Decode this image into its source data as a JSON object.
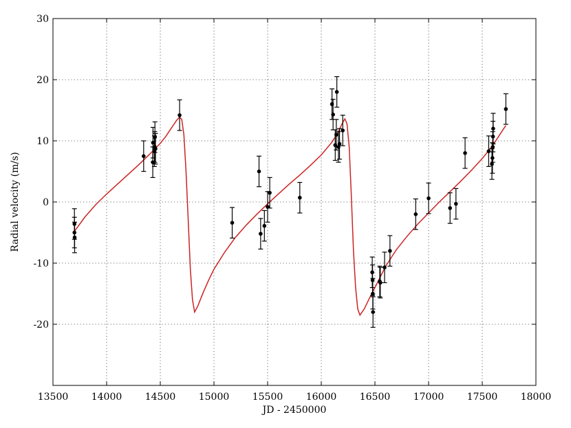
{
  "chart_data": {
    "type": "scatter",
    "title": "",
    "xlabel": "JD - 2450000",
    "ylabel": "Radial velocity (m/s)",
    "xlim": [
      13500,
      18000
    ],
    "ylim": [
      -30,
      30
    ],
    "xticks": [
      13500,
      14000,
      14500,
      15000,
      15500,
      16000,
      16500,
      17000,
      17500,
      18000
    ],
    "yticks": [
      -20,
      -10,
      0,
      10,
      20,
      30
    ],
    "grid": true,
    "colors": {
      "model": "#cc2222",
      "points": "#000000"
    },
    "series": [
      {
        "kind": "errorbar",
        "points": [
          {
            "x": 13700,
            "y": -3.6,
            "err": 2.5
          },
          {
            "x": 13700,
            "y": -5.0,
            "err": 2.5
          },
          {
            "x": 13702,
            "y": -5.8,
            "err": 2.5
          },
          {
            "x": 14345,
            "y": 7.5,
            "err": 2.5
          },
          {
            "x": 14430,
            "y": 6.5,
            "err": 2.5
          },
          {
            "x": 14432,
            "y": 9.7,
            "err": 2.5
          },
          {
            "x": 14445,
            "y": 8.3,
            "err": 2.5
          },
          {
            "x": 14448,
            "y": 9.0,
            "err": 2.5
          },
          {
            "x": 14450,
            "y": 10.6,
            "err": 2.5
          },
          {
            "x": 14455,
            "y": 8.7,
            "err": 2.5
          },
          {
            "x": 14680,
            "y": 14.2,
            "err": 2.5
          },
          {
            "x": 15170,
            "y": -3.4,
            "err": 2.5
          },
          {
            "x": 15420,
            "y": 5.0,
            "err": 2.5
          },
          {
            "x": 15435,
            "y": -5.2,
            "err": 2.5
          },
          {
            "x": 15470,
            "y": -3.9,
            "err": 2.5
          },
          {
            "x": 15500,
            "y": -0.8,
            "err": 2.5
          },
          {
            "x": 15520,
            "y": 1.5,
            "err": 2.5
          },
          {
            "x": 15800,
            "y": 0.7,
            "err": 2.5
          },
          {
            "x": 16100,
            "y": 16.0,
            "err": 2.5
          },
          {
            "x": 16110,
            "y": 14.3,
            "err": 2.5
          },
          {
            "x": 16130,
            "y": 9.3,
            "err": 2.5
          },
          {
            "x": 16140,
            "y": 11.0,
            "err": 2.5
          },
          {
            "x": 16145,
            "y": 18.0,
            "err": 2.5
          },
          {
            "x": 16160,
            "y": 9.0,
            "err": 2.5
          },
          {
            "x": 16170,
            "y": 9.5,
            "err": 2.5
          },
          {
            "x": 16200,
            "y": 11.7,
            "err": 2.5
          },
          {
            "x": 16475,
            "y": -11.5,
            "err": 2.5
          },
          {
            "x": 16478,
            "y": -12.8,
            "err": 2.5
          },
          {
            "x": 16480,
            "y": -15.0,
            "err": 2.5
          },
          {
            "x": 16482,
            "y": -18.0,
            "err": 2.5
          },
          {
            "x": 16545,
            "y": -13.0,
            "err": 2.5
          },
          {
            "x": 16550,
            "y": -13.2,
            "err": 2.5
          },
          {
            "x": 16590,
            "y": -10.7,
            "err": 2.5
          },
          {
            "x": 16640,
            "y": -8.0,
            "err": 2.5
          },
          {
            "x": 16880,
            "y": -2.0,
            "err": 2.5
          },
          {
            "x": 17000,
            "y": 0.6,
            "err": 2.5
          },
          {
            "x": 17200,
            "y": -1.0,
            "err": 2.5
          },
          {
            "x": 17255,
            "y": -0.3,
            "err": 2.5
          },
          {
            "x": 17340,
            "y": 8.0,
            "err": 2.5
          },
          {
            "x": 17560,
            "y": 8.3,
            "err": 2.5
          },
          {
            "x": 17590,
            "y": 6.2,
            "err": 2.5
          },
          {
            "x": 17595,
            "y": 7.2,
            "err": 2.5
          },
          {
            "x": 17598,
            "y": 9.0,
            "err": 2.5
          },
          {
            "x": 17600,
            "y": 10.7,
            "err": 2.5
          },
          {
            "x": 17602,
            "y": 12.0,
            "err": 2.5
          },
          {
            "x": 17720,
            "y": 15.2,
            "err": 2.5
          }
        ]
      },
      {
        "kind": "line",
        "x": [
          13700,
          13800,
          13900,
          14000,
          14100,
          14200,
          14300,
          14400,
          14500,
          14550,
          14600,
          14650,
          14680,
          14700,
          14720,
          14740,
          14760,
          14780,
          14800,
          14820,
          14850,
          14900,
          14950,
          15000,
          15100,
          15200,
          15300,
          15400,
          15500,
          15600,
          15700,
          15800,
          15900,
          16000,
          16100,
          16150,
          16200,
          16220,
          16240,
          16260,
          16280,
          16300,
          16320,
          16340,
          16360,
          16400,
          16450,
          16500,
          16600,
          16700,
          16800,
          16900,
          17000,
          17100,
          17200,
          17300,
          17400,
          17500,
          17600,
          17700,
          17720
        ],
        "y": [
          -4.8,
          -2.4,
          -0.4,
          1.3,
          2.9,
          4.5,
          6.1,
          7.8,
          9.6,
          10.7,
          12.0,
          13.3,
          13.9,
          13.5,
          11.0,
          5.0,
          -3.0,
          -11.0,
          -16.0,
          -18.0,
          -17.0,
          -14.8,
          -12.8,
          -11.0,
          -8.2,
          -5.8,
          -3.8,
          -2.0,
          -0.3,
          1.3,
          2.9,
          4.4,
          6.0,
          7.7,
          9.8,
          11.2,
          13.0,
          13.6,
          12.8,
          9.0,
          1.0,
          -8.0,
          -14.0,
          -17.5,
          -18.5,
          -17.5,
          -15.7,
          -14.0,
          -10.5,
          -7.8,
          -5.6,
          -3.6,
          -1.8,
          0.0,
          1.7,
          3.4,
          5.2,
          7.1,
          9.3,
          12.0,
          12.5
        ]
      }
    ]
  }
}
